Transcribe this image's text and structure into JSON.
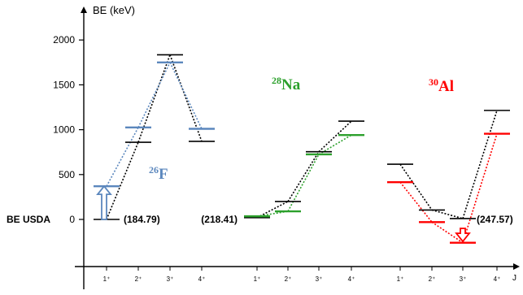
{
  "chart_data": {
    "type": "line",
    "ylabel": "BE (keV)",
    "xlabel": "J",
    "ylim": [
      -500,
      2000
    ],
    "yticks": [
      0,
      500,
      1000,
      1500,
      2000
    ],
    "baseline_label": "BE USDA",
    "groups": [
      {
        "nucleus": "F",
        "mass": "26",
        "color": "#5b87bd",
        "reference": "(184.79)",
        "states": [
          "1⁺",
          "2⁺",
          "3⁺",
          "4⁺"
        ],
        "series": [
          {
            "name": "",
            "color": "#000000",
            "values": [
              0,
              860,
              1835,
              870
            ]
          },
          {
            "name": "",
            "color": "#5b87bd",
            "values": [
              370,
              1025,
              1750,
              1010
            ]
          }
        ]
      },
      {
        "nucleus": "Na",
        "mass": "28",
        "color": "#2ca02c",
        "reference": "(218.41)",
        "states": [
          "1⁺",
          "2⁺",
          "3⁺",
          "4⁺"
        ],
        "series": [
          {
            "name": "",
            "color": "#000000",
            "values": [
              20,
              200,
              755,
              1095
            ]
          },
          {
            "name": "",
            "color": "#2ca02c",
            "values": [
              35,
              90,
              725,
              940
            ]
          }
        ]
      },
      {
        "nucleus": "Al",
        "mass": "30",
        "color": "#ff0000",
        "reference": "(247.57)",
        "states": [
          "1⁺",
          "2⁺",
          "3⁺",
          "4⁺"
        ],
        "series": [
          {
            "name": "",
            "color": "#000000",
            "values": [
              615,
              105,
              10,
              1215
            ]
          },
          {
            "name": "",
            "color": "#ff0000",
            "values": [
              415,
              -30,
              -260,
              955
            ]
          }
        ]
      }
    ],
    "annotations": [
      {
        "type": "arrow-up",
        "group": 0,
        "color": "#5b87bd",
        "from": 0,
        "to": 370
      },
      {
        "type": "arrow-down",
        "group": 2,
        "color": "#ff0000",
        "from": -100,
        "to": -245
      }
    ]
  }
}
